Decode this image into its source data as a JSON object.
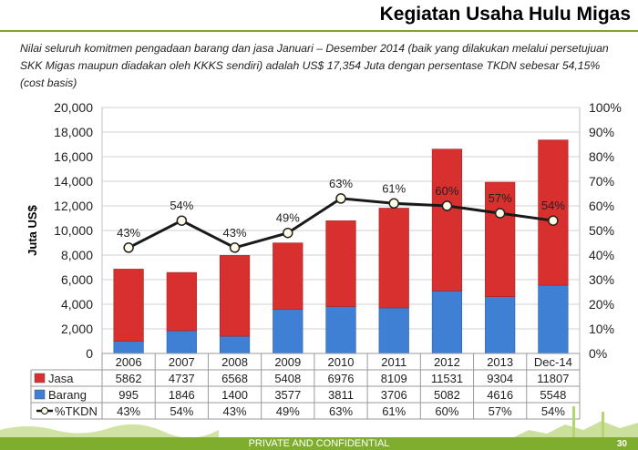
{
  "page": {
    "title": "Kegiatan Usaha Hulu Migas",
    "subtitle": "Nilai seluruh komitmen pengadaan barang dan jasa Januari – Desember 2014 (baik yang dilakukan melalui persetujuan SKK Migas maupun diadakan oleh KKKS sendiri) adalah US$ 17,354 Juta dengan persentase TKDN sebesar 54,15% (cost basis)",
    "footer_text": "PRIVATE AND CONFIDENTIAL",
    "page_number": "30"
  },
  "colors": {
    "jasa": "#d8302f",
    "barang": "#3f7fd4",
    "line": "#1a1a1a",
    "accent": "#7fae2e"
  },
  "chart_data": {
    "type": "bar",
    "stacked": true,
    "categories": [
      "2006",
      "2007",
      "2008",
      "2009",
      "2010",
      "2011",
      "2012",
      "2013",
      "Dec-14"
    ],
    "series": [
      {
        "name": "Jasa",
        "type": "bar",
        "values": [
          5862,
          4737,
          6568,
          5408,
          6976,
          8109,
          11531,
          9304,
          11807
        ]
      },
      {
        "name": "Barang",
        "type": "bar",
        "values": [
          995,
          1846,
          1400,
          3577,
          3811,
          3706,
          5082,
          4616,
          5548
        ]
      },
      {
        "name": "%TKDN",
        "type": "line",
        "axis": "right",
        "values": [
          43,
          54,
          43,
          49,
          63,
          61,
          60,
          57,
          54
        ]
      }
    ],
    "line_labels": [
      "43%",
      "54%",
      "43%",
      "49%",
      "63%",
      "61%",
      "60%",
      "57%",
      "54%"
    ],
    "table_rows": [
      {
        "name": "Jasa",
        "values": [
          "5862",
          "4737",
          "6568",
          "5408",
          "6976",
          "8109",
          "11531",
          "9304",
          "11807"
        ]
      },
      {
        "name": "Barang",
        "values": [
          "995",
          "1846",
          "1400",
          "3577",
          "3811",
          "3706",
          "5082",
          "4616",
          "5548"
        ]
      },
      {
        "name": "%TKDN",
        "values": [
          "43%",
          "54%",
          "43%",
          "49%",
          "63%",
          "61%",
          "60%",
          "57%",
          "54%"
        ]
      }
    ],
    "ylabel": "Juta US$",
    "ylim": [
      0,
      20000
    ],
    "y2lim": [
      0,
      100
    ],
    "yticks": [
      "0",
      "2,000",
      "4,000",
      "6,000",
      "8,000",
      "10,000",
      "12,000",
      "14,000",
      "16,000",
      "18,000",
      "20,000"
    ],
    "y2ticks": [
      "0%",
      "10%",
      "20%",
      "30%",
      "40%",
      "50%",
      "60%",
      "70%",
      "80%",
      "90%",
      "100%"
    ],
    "grid": true,
    "legend": "data-table"
  }
}
